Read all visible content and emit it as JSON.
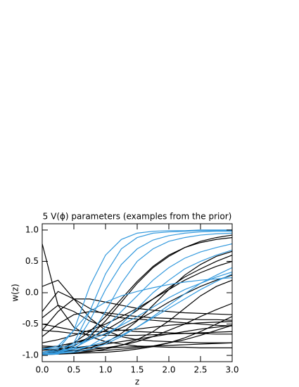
{
  "chart_data": {
    "type": "line",
    "title": "5 V(ϕ) parameters (examples from the prior)",
    "x_label": "z",
    "y_label": "w(z)",
    "x": [
      0,
      0.25,
      0.5,
      0.75,
      1,
      1.25,
      1.5,
      1.75,
      2,
      2.25,
      2.5,
      2.75,
      3
    ],
    "xlim": [
      0,
      3
    ],
    "ylim": [
      -1.1,
      1.1
    ],
    "xticks": [
      {
        "value": 0,
        "label": "0.0"
      },
      {
        "value": 0.5,
        "label": "0.5"
      },
      {
        "value": 1,
        "label": "1.0"
      },
      {
        "value": 1.5,
        "label": "1.5"
      },
      {
        "value": 2,
        "label": "2.0"
      },
      {
        "value": 2.5,
        "label": "2.5"
      },
      {
        "value": 3,
        "label": "3.0"
      }
    ],
    "yticks": [
      {
        "value": -1,
        "label": "-1.0"
      },
      {
        "value": -0.5,
        "label": "-0.5"
      },
      {
        "value": 0,
        "label": "0.0"
      },
      {
        "value": 0.5,
        "label": "0.5"
      },
      {
        "value": 1,
        "label": "1.0"
      }
    ],
    "series": [
      {
        "color": "#000000",
        "values": [
          0.78,
          -0.2,
          -0.55,
          -0.7,
          -0.78,
          -0.82,
          -0.85,
          -0.86,
          -0.87,
          -0.87,
          -0.88,
          -0.88,
          -0.88
        ]
      },
      {
        "color": "#000000",
        "values": [
          0.1,
          0.2,
          -0.1,
          -0.4,
          -0.6,
          -0.7,
          -0.75,
          -0.77,
          -0.78,
          -0.79,
          -0.8,
          -0.8,
          -0.8
        ]
      },
      {
        "color": "#000000",
        "values": [
          -0.3,
          0.02,
          -0.1,
          -0.25,
          -0.35,
          -0.4,
          -0.42,
          -0.44,
          -0.46,
          -0.48,
          -0.5,
          -0.52,
          -0.53
        ]
      },
      {
        "color": "#000000",
        "values": [
          -0.95,
          -0.92,
          -0.85,
          -0.7,
          -0.45,
          -0.15,
          0.15,
          0.4,
          0.58,
          0.72,
          0.82,
          0.88,
          0.92
        ]
      },
      {
        "color": "#000000",
        "values": [
          -0.95,
          -0.94,
          -0.92,
          -0.88,
          -0.8,
          -0.65,
          -0.45,
          -0.2,
          0.05,
          0.28,
          0.45,
          0.58,
          0.66
        ]
      },
      {
        "color": "#000000",
        "values": [
          -0.9,
          -0.85,
          -0.8,
          -0.74,
          -0.66,
          -0.56,
          -0.44,
          -0.3,
          -0.15,
          -0.02,
          0.1,
          0.2,
          0.28
        ]
      },
      {
        "color": "#000000",
        "values": [
          -0.95,
          -0.94,
          -0.93,
          -0.91,
          -0.88,
          -0.84,
          -0.78,
          -0.7,
          -0.6,
          -0.5,
          -0.38,
          -0.27,
          -0.17
        ]
      },
      {
        "color": "#000000",
        "values": [
          -0.6,
          -0.3,
          -0.1,
          -0.1,
          -0.15,
          -0.2,
          -0.25,
          -0.28,
          -0.3,
          -0.32,
          -0.33,
          -0.34,
          -0.35
        ]
      },
      {
        "color": "#000000",
        "values": [
          -0.5,
          -0.55,
          -0.6,
          -0.62,
          -0.62,
          -0.6,
          -0.58,
          -0.55,
          -0.52,
          -0.5,
          -0.48,
          -0.47,
          -0.46
        ]
      },
      {
        "color": "#000000",
        "values": [
          -0.85,
          -0.86,
          -0.87,
          -0.88,
          -0.88,
          -0.87,
          -0.86,
          -0.85,
          -0.84,
          -0.83,
          -0.82,
          -0.81,
          -0.8
        ]
      },
      {
        "color": "#000000",
        "values": [
          -0.4,
          -0.2,
          -0.3,
          -0.45,
          -0.55,
          -0.6,
          -0.62,
          -0.63,
          -0.64,
          -0.65,
          -0.65,
          -0.66,
          -0.66
        ]
      },
      {
        "color": "#000000",
        "values": [
          -0.98,
          -0.97,
          -0.96,
          -0.94,
          -0.9,
          -0.84,
          -0.75,
          -0.62,
          -0.45,
          -0.25,
          -0.05,
          0.1,
          0.2
        ]
      },
      {
        "color": "#000000",
        "values": [
          -0.9,
          -0.92,
          -0.93,
          -0.93,
          -0.92,
          -0.9,
          -0.88,
          -0.85,
          -0.8,
          -0.75,
          -0.68,
          -0.6,
          -0.52
        ]
      },
      {
        "color": "#000000",
        "values": [
          -0.7,
          -0.5,
          -0.35,
          -0.3,
          -0.32,
          -0.35,
          -0.38,
          -0.4,
          -0.41,
          -0.42,
          -0.43,
          -0.43,
          -0.44
        ]
      },
      {
        "color": "#000000",
        "values": [
          -0.99,
          -0.98,
          -0.97,
          -0.96,
          -0.95,
          -0.93,
          -0.9,
          -0.86,
          -0.8,
          -0.72,
          -0.62,
          -0.5,
          -0.38
        ]
      },
      {
        "color": "#000000",
        "values": [
          -0.8,
          -0.75,
          -0.68,
          -0.6,
          -0.5,
          -0.38,
          -0.25,
          -0.1,
          0.05,
          0.2,
          0.32,
          0.42,
          0.5
        ]
      },
      {
        "color": "#000000",
        "values": [
          -0.88,
          -0.85,
          -0.8,
          -0.72,
          -0.6,
          -0.45,
          -0.28,
          -0.1,
          0.08,
          0.25,
          0.38,
          0.5,
          0.6
        ]
      },
      {
        "color": "#000000",
        "values": [
          -0.95,
          -0.9,
          -0.8,
          -0.62,
          -0.38,
          -0.1,
          0.18,
          0.42,
          0.6,
          0.72,
          0.8,
          0.85,
          0.88
        ]
      },
      {
        "color": "#000000",
        "values": [
          -0.6,
          -0.62,
          -0.65,
          -0.67,
          -0.68,
          -0.68,
          -0.68,
          -0.67,
          -0.66,
          -0.65,
          -0.64,
          -0.63,
          -0.62
        ]
      },
      {
        "color": "#000000",
        "values": [
          -0.92,
          -0.9,
          -0.88,
          -0.85,
          -0.82,
          -0.78,
          -0.74,
          -0.7,
          -0.66,
          -0.62,
          -0.58,
          -0.55,
          -0.52
        ]
      },
      {
        "color": "#3399dd",
        "values": [
          -0.95,
          -0.9,
          -0.6,
          0.1,
          0.6,
          0.85,
          0.95,
          0.98,
          0.99,
          0.99,
          1,
          1,
          1
        ]
      },
      {
        "color": "#3399dd",
        "values": [
          -0.98,
          -0.95,
          -0.8,
          -0.3,
          0.3,
          0.7,
          0.88,
          0.95,
          0.97,
          0.98,
          0.99,
          0.99,
          0.99
        ]
      },
      {
        "color": "#3399dd",
        "values": [
          -0.97,
          -0.95,
          -0.9,
          -0.7,
          -0.3,
          0.15,
          0.5,
          0.7,
          0.82,
          0.88,
          0.92,
          0.94,
          0.95
        ]
      },
      {
        "color": "#3399dd",
        "values": [
          -0.95,
          -0.93,
          -0.88,
          -0.75,
          -0.55,
          -0.3,
          -0.05,
          0.2,
          0.4,
          0.55,
          0.65,
          0.72,
          0.78
        ]
      },
      {
        "color": "#3399dd",
        "values": [
          -0.9,
          -0.85,
          -0.6,
          -0.3,
          -0.15,
          -0.05,
          0.02,
          0.08,
          0.13,
          0.17,
          0.2,
          0.22,
          0.24
        ]
      },
      {
        "color": "#3399dd",
        "values": [
          -0.98,
          -0.97,
          -0.95,
          -0.9,
          -0.82,
          -0.7,
          -0.55,
          -0.38,
          -0.2,
          -0.02,
          0.15,
          0.28,
          0.4
        ]
      },
      {
        "color": "#3399dd",
        "values": [
          -0.95,
          -0.93,
          -0.9,
          -0.85,
          -0.78,
          -0.68,
          -0.55,
          -0.4,
          -0.25,
          -0.1,
          0.05,
          0.18,
          0.3
        ]
      },
      {
        "color": "#3399dd",
        "values": [
          -0.99,
          -0.98,
          -0.85,
          -0.45,
          0.05,
          0.45,
          0.7,
          0.84,
          0.91,
          0.95,
          0.97,
          0.98,
          0.98
        ]
      },
      {
        "color": "#3399dd",
        "values": [
          -0.97,
          -0.96,
          -0.93,
          -0.85,
          -0.7,
          -0.5,
          -0.25,
          0,
          0.2,
          0.38,
          0.5,
          0.6,
          0.68
        ]
      },
      {
        "color": "#3399dd",
        "values": [
          -0.9,
          -0.88,
          -0.83,
          -0.75,
          -0.65,
          -0.52,
          -0.38,
          -0.23,
          -0.08,
          0.05,
          0.15,
          0.25,
          0.33
        ]
      }
    ]
  }
}
